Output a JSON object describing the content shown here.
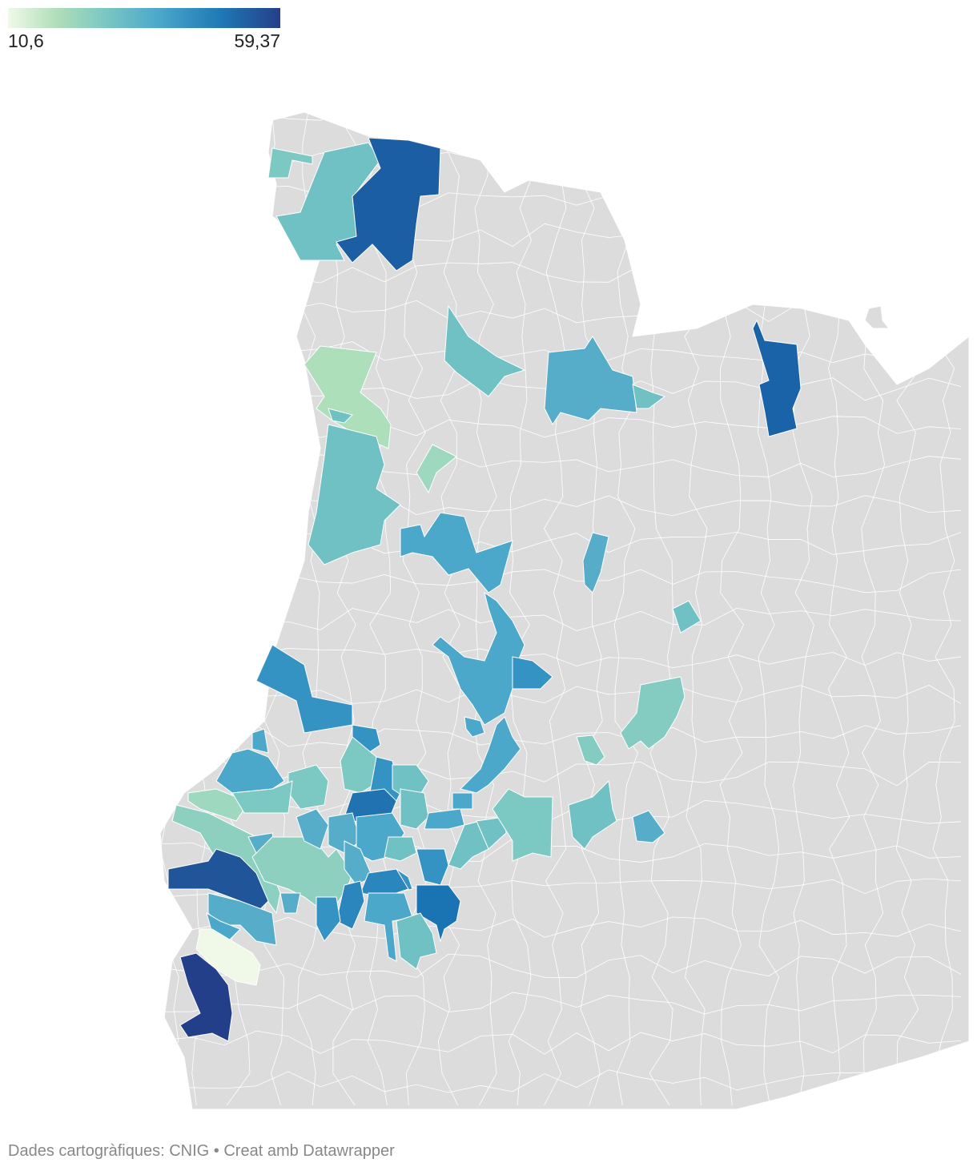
{
  "legend": {
    "min_label": "10,6",
    "max_label": "59,37",
    "color_scale": [
      "#f0f9e8",
      "#b0deb9",
      "#7cc8c2",
      "#4ca8cb",
      "#1f79b5",
      "#253f8a"
    ]
  },
  "map": {
    "no_data_color": "#dcdcdc",
    "border_color": "#ffffff"
  },
  "footer": {
    "source": "Dades cartogràfiques: CNIG",
    "separator": " • ",
    "credit": "Creat amb Datawrapper"
  }
}
